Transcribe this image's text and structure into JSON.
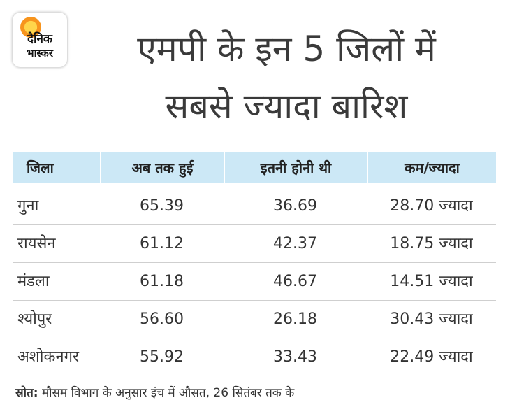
{
  "logo": {
    "line1": "दैनिक",
    "line2": "भास्कर",
    "sun_color": "#f7941d"
  },
  "title": {
    "line1": "एमपी के इन 5 जिलों में",
    "line2": "सबसे ज्यादा बारिश"
  },
  "chart_data": {
    "type": "table",
    "columns": [
      "जिला",
      "अब तक हुई",
      "इतनी होनी थी",
      "कम/ज्यादा"
    ],
    "rows": [
      {
        "district": "गुना",
        "actual": "65.39",
        "normal": "36.69",
        "difference": "28.70",
        "change": "ज्यादा"
      },
      {
        "district": "रायसेन",
        "actual": "61.12",
        "normal": "42.37",
        "difference": "18.75",
        "change": "ज्यादा"
      },
      {
        "district": "मंडला",
        "actual": "61.18",
        "normal": "46.67",
        "difference": "14.51",
        "change": "ज्यादा"
      },
      {
        "district": "श्योपुर",
        "actual": "56.60",
        "normal": "26.18",
        "difference": "30.43",
        "change": "ज्यादा"
      },
      {
        "district": "अशोकनगर",
        "actual": "55.92",
        "normal": "33.43",
        "difference": "22.49",
        "change": "ज्यादा"
      }
    ]
  },
  "footer": {
    "source_label": "स्रोत:",
    "source_text": "मौसम विभाग के अनुसार इंच में औसत, 26 सितंबर तक के"
  },
  "colors": {
    "header_bg": "#cce8f6",
    "text": "#333333",
    "row_line": "#cfcfcf"
  }
}
